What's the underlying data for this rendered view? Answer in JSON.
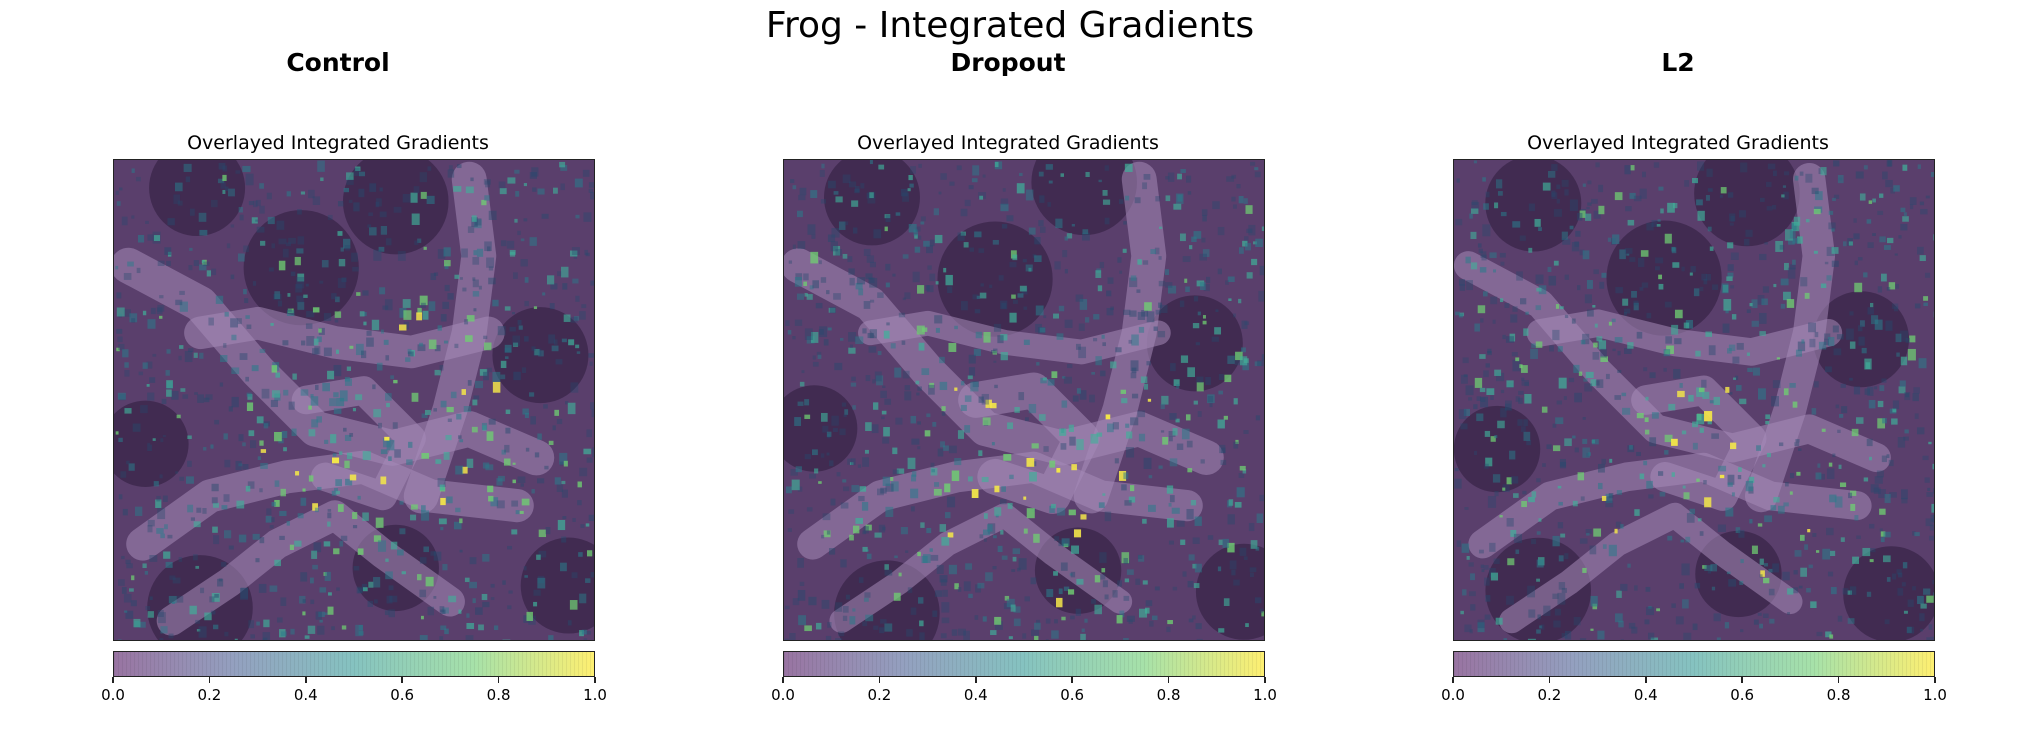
{
  "figure": {
    "title": "Frog - Integrated Gradients"
  },
  "chart_data": [
    {
      "type": "heatmap",
      "column_title": "Control",
      "title": "Overlayed Integrated Gradients",
      "colormap": "viridis",
      "colorbar": {
        "range": [
          0.0,
          1.0
        ],
        "ticks": [
          "0.0",
          "0.2",
          "0.4",
          "0.6",
          "0.8",
          "1.0"
        ]
      },
      "seed": 11
    },
    {
      "type": "heatmap",
      "column_title": "Dropout",
      "title": "Overlayed Integrated Gradients",
      "colormap": "viridis",
      "colorbar": {
        "range": [
          0.0,
          1.0
        ],
        "ticks": [
          "0.0",
          "0.2",
          "0.4",
          "0.6",
          "0.8",
          "1.0"
        ]
      },
      "seed": 23
    },
    {
      "type": "heatmap",
      "column_title": "L2",
      "title": "Overlayed Integrated Gradients",
      "colormap": "viridis",
      "colorbar": {
        "range": [
          0.0,
          1.0
        ],
        "ticks": [
          "0.0",
          "0.2",
          "0.4",
          "0.6",
          "0.8",
          "1.0"
        ]
      },
      "seed": 37
    }
  ]
}
